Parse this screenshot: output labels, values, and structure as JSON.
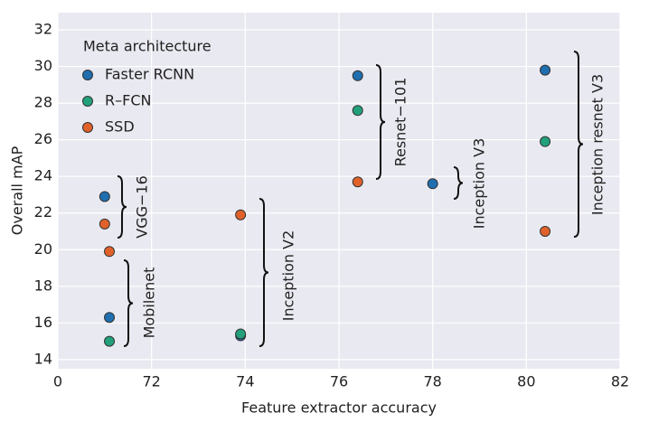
{
  "chart_data": {
    "type": "scatter",
    "x_label": "Feature extractor accuracy",
    "y_label": "Overall mAP",
    "legend_title": "Meta architecture",
    "series": [
      {
        "name": "Faster RCNN",
        "color": "#1f6eb0",
        "x": [
          71.0,
          71.1,
          73.9,
          76.4,
          78.0,
          80.4
        ],
        "values": [
          22.9,
          16.3,
          15.3,
          29.5,
          23.6,
          29.8
        ]
      },
      {
        "name": "R–FCN",
        "color": "#22a07a",
        "x": [
          71.1,
          73.9,
          76.4,
          80.4
        ],
        "values": [
          15.0,
          15.4,
          27.6,
          25.9
        ]
      },
      {
        "name": "SSD",
        "color": "#e0622a",
        "x": [
          71.0,
          71.1,
          73.9,
          76.4,
          80.4
        ],
        "values": [
          21.4,
          19.9,
          21.9,
          23.7,
          21.0
        ]
      }
    ],
    "annotations": [
      "VGG−16",
      "Mobilenet",
      "Inception V2",
      "Resnet−101",
      "Inception V3",
      "Inception resnet V3"
    ],
    "xlim": [
      70,
      82
    ],
    "xticks": [
      {
        "value": 70,
        "label": "0"
      },
      72,
      74,
      76,
      78,
      80,
      82
    ],
    "ylim": [
      13.5,
      32.5
    ],
    "yticks": [
      14,
      16,
      18,
      20,
      22,
      24,
      26,
      28,
      30,
      32
    ],
    "grid": true
  }
}
